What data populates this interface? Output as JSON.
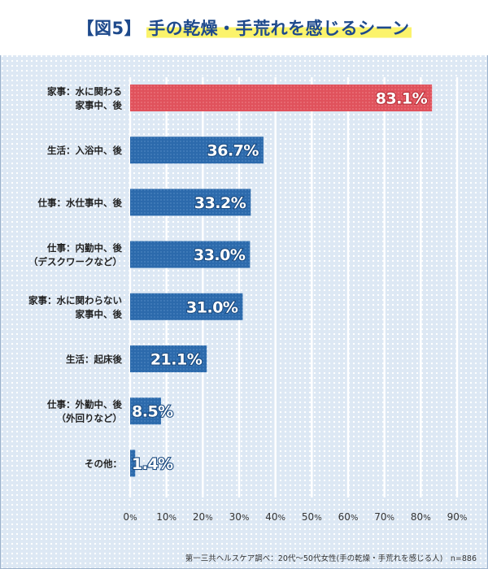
{
  "title": {
    "tag": "【図5】",
    "main": "手の乾燥・手荒れを感じるシーン"
  },
  "footer": "第一三共ヘルスケア調べ：20代〜50代女性(手の乾燥・手荒れを感じる人)　n=886",
  "colors": {
    "highlight": "#e0525c",
    "bar": "#2c6aac",
    "grid": "#ffffff",
    "title_text": "#1e4a8c",
    "title_marker": "#fbf36b"
  },
  "chart_data": {
    "type": "bar",
    "orientation": "horizontal",
    "categories": [
      [
        "家事：水に関わる",
        "家事中、後"
      ],
      [
        "生活：入浴中、後"
      ],
      [
        "仕事：水仕事中、後"
      ],
      [
        "仕事：内勤中、後",
        "（デスクワークなど）"
      ],
      [
        "家事：水に関わらない",
        "家事中、後"
      ],
      [
        "生活：起床後"
      ],
      [
        "仕事：外勤中、後",
        "（外回りなど）"
      ],
      [
        "その他："
      ]
    ],
    "values": [
      83.1,
      36.7,
      33.2,
      33.0,
      31.0,
      21.1,
      8.5,
      1.4
    ],
    "value_labels": [
      "83.1%",
      "36.7%",
      "33.2%",
      "33.0%",
      "31.0%",
      "21.1%",
      "8.5%",
      "1.4%"
    ],
    "highlight_index": 0,
    "xlim": [
      0,
      90
    ],
    "xticks": [
      0,
      10,
      20,
      30,
      40,
      50,
      60,
      70,
      80,
      90
    ],
    "tick_suffix": "%",
    "grid": true,
    "xlabel": "",
    "ylabel": ""
  }
}
